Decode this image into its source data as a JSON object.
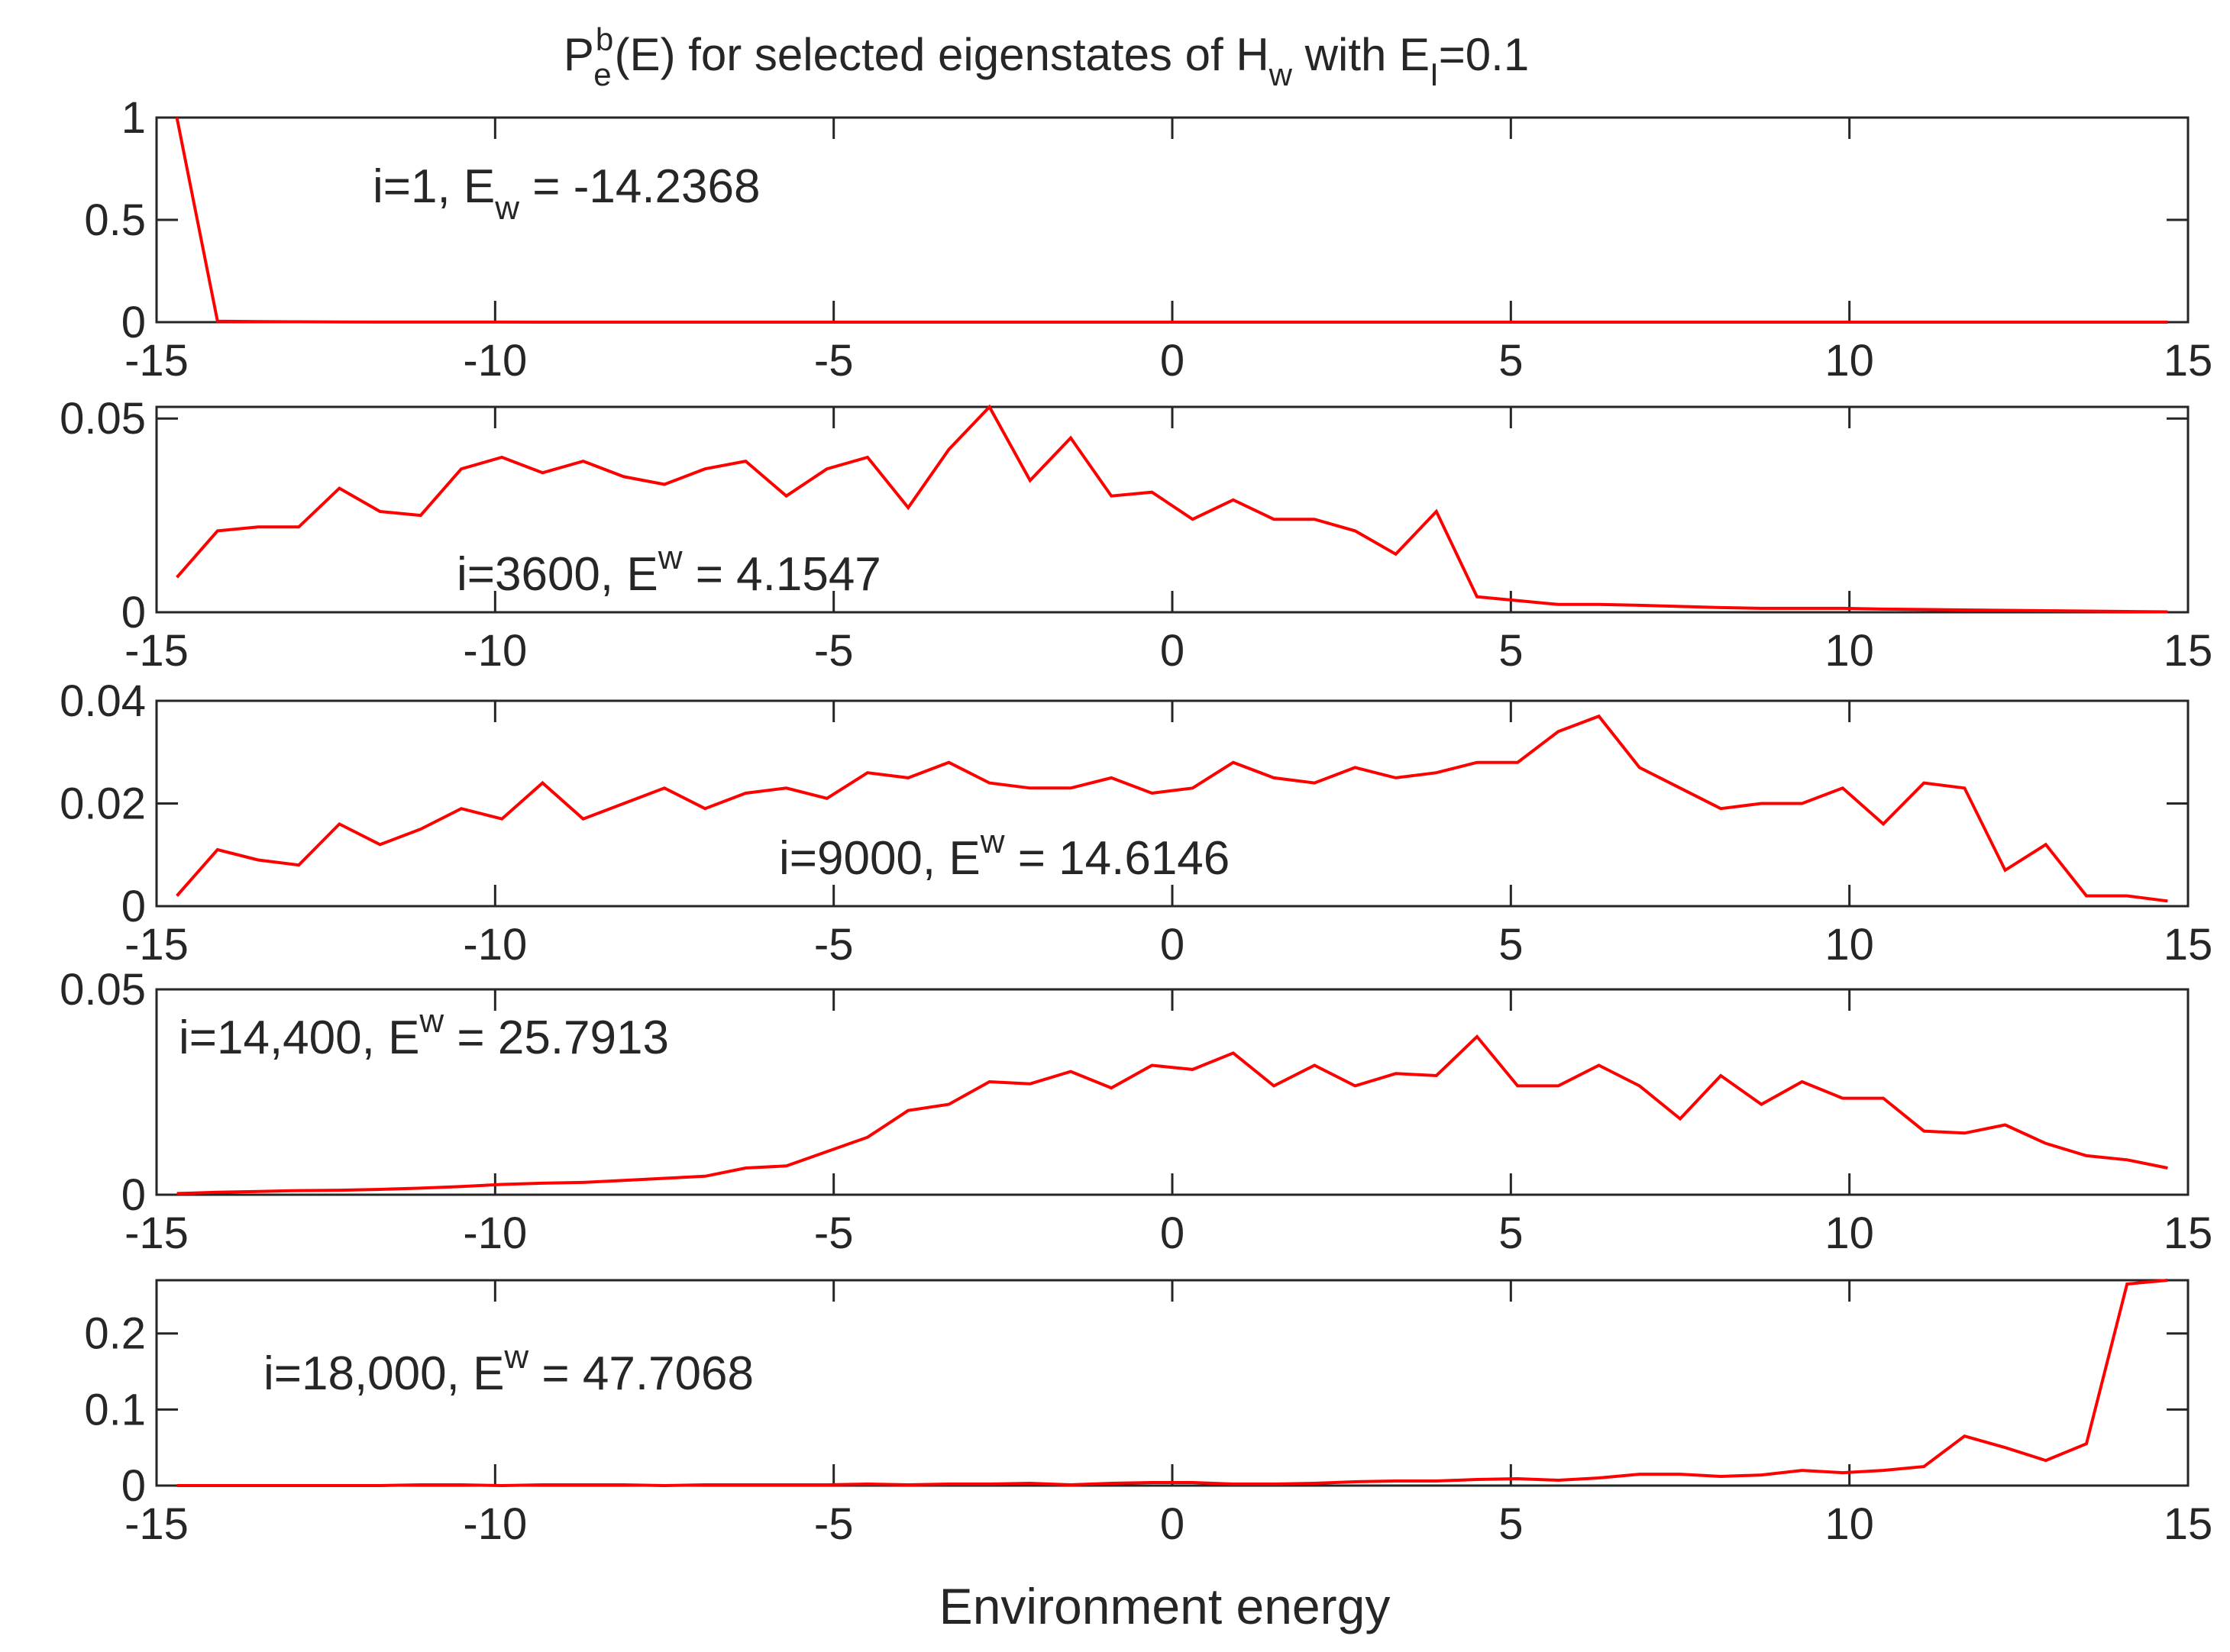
{
  "title": {
    "base": "P",
    "sup": "b",
    "sub": "e",
    "rest": "(E) for selected eigenstates of H",
    "h_sub": "w",
    "rest2": " with E",
    "e_sub": "I",
    "rest3": "=0.1"
  },
  "xlabel": "Environment energy",
  "colors": {
    "series": "#ff0000",
    "axis": "#262626",
    "background": "#ffffff"
  },
  "chart_data": [
    {
      "type": "line",
      "annotation": {
        "prefix": "i=1, E",
        "script": "w",
        "script_pos": "sub",
        "suffix": " = -14.2368"
      },
      "xlim": [
        -15,
        15
      ],
      "ylim": [
        0,
        1
      ],
      "xticks": [
        "-15",
        "-10",
        "-5",
        "0",
        "5",
        "10",
        "15"
      ],
      "yticks": [
        {
          "v": 0,
          "label": "0"
        },
        {
          "v": 0.5,
          "label": "0.5"
        },
        {
          "v": 1,
          "label": "1"
        }
      ],
      "x": [
        -14.7,
        -14.1,
        -12.9,
        -12.3,
        -15
      ],
      "values": [
        1.0,
        0.005,
        0.002,
        0.0,
        0.0
      ],
      "series": [
        {
          "name": "Pe",
          "x": [
            -14.7,
            -14.1,
            -13.5,
            -12.9,
            -12.3,
            -11.7,
            -11.1,
            -10.5,
            -9.9,
            -9.3,
            -8.7,
            -8.1,
            -7.5,
            -6.9,
            -6.3,
            -5.7,
            -5.1,
            -4.5,
            -3.9,
            -3.3,
            -2.7,
            -2.1,
            -1.5,
            -0.9,
            -0.3,
            0.3,
            0.9,
            1.5,
            2.1,
            2.7,
            3.3,
            3.9,
            4.5,
            5.1,
            5.7,
            6.3,
            6.9,
            7.5,
            8.1,
            8.7,
            9.3,
            9.9,
            10.5,
            11.1,
            11.7,
            12.3,
            12.9,
            13.5,
            14.1,
            14.7
          ],
          "values": [
            1.0,
            0.005,
            0.003,
            0.002,
            0.0006,
            0.0004,
            0.0003,
            0.0002,
            0.0002,
            0.0001,
            0.0001,
            0.0001,
            0.0001,
            0.0001,
            0.0001,
            0.0001,
            0.0001,
            0.0001,
            0.0001,
            0.0001,
            0.0001,
            0.0001,
            0.0001,
            0.0001,
            0.0001,
            0.0001,
            0.0001,
            0.0001,
            0.0001,
            0.0001,
            0.0001,
            0.0001,
            0.0001,
            0.0001,
            0.0001,
            0.0001,
            0.0001,
            0.0001,
            0.0001,
            0.0001,
            0.0001,
            0.0001,
            0.0001,
            0.0001,
            0.0001,
            0.0001,
            0.0001,
            0.0001,
            0.0001,
            0.0001
          ]
        }
      ]
    },
    {
      "type": "line",
      "annotation": {
        "prefix": "i=3600, E",
        "script": "w",
        "script_pos": "sup",
        "suffix": " = 4.1547"
      },
      "xlim": [
        -15,
        15
      ],
      "ylim": [
        0,
        0.053
      ],
      "xticks": [
        "-15",
        "-10",
        "-5",
        "0",
        "5",
        "10",
        "15"
      ],
      "yticks": [
        {
          "v": 0,
          "label": "0"
        },
        {
          "v": 0.05,
          "label": "0.05"
        }
      ],
      "series": [
        {
          "name": "Pe",
          "x": [
            -14.7,
            -14.1,
            -13.5,
            -12.9,
            -12.3,
            -11.7,
            -11.1,
            -10.5,
            -9.9,
            -9.3,
            -8.7,
            -8.1,
            -7.5,
            -6.9,
            -6.3,
            -5.7,
            -5.1,
            -4.5,
            -3.9,
            -3.3,
            -2.7,
            -2.1,
            -1.5,
            -0.9,
            -0.3,
            0.3,
            0.9,
            1.5,
            2.1,
            2.7,
            3.3,
            3.9,
            4.5,
            5.1,
            5.7,
            6.3,
            6.9,
            7.5,
            8.1,
            8.7,
            9.3,
            9.9,
            10.5,
            11.1,
            11.7,
            12.3,
            12.9,
            13.5,
            14.1,
            14.7
          ],
          "values": [
            0.009,
            0.021,
            0.022,
            0.022,
            0.032,
            0.026,
            0.025,
            0.037,
            0.04,
            0.036,
            0.039,
            0.035,
            0.033,
            0.037,
            0.039,
            0.03,
            0.037,
            0.04,
            0.027,
            0.042,
            0.053,
            0.034,
            0.045,
            0.03,
            0.031,
            0.024,
            0.029,
            0.024,
            0.024,
            0.021,
            0.015,
            0.026,
            0.004,
            0.003,
            0.002,
            0.002,
            0.0018,
            0.0015,
            0.0012,
            0.001,
            0.001,
            0.001,
            0.0008,
            0.0007,
            0.0006,
            0.0005,
            0.0004,
            0.0003,
            0.0002,
            0.0001
          ]
        }
      ]
    },
    {
      "type": "line",
      "annotation": {
        "prefix": "i=9000, E",
        "script": "w",
        "script_pos": "sup",
        "suffix": " = 14.6146"
      },
      "xlim": [
        -15,
        15
      ],
      "ylim": [
        0,
        0.04
      ],
      "xticks": [
        "-15",
        "-10",
        "-5",
        "0",
        "5",
        "10",
        "15"
      ],
      "yticks": [
        {
          "v": 0,
          "label": "0"
        },
        {
          "v": 0.02,
          "label": "0.02"
        },
        {
          "v": 0.04,
          "label": "0.04"
        }
      ],
      "series": [
        {
          "name": "Pe",
          "x": [
            -14.7,
            -14.1,
            -13.5,
            -12.9,
            -12.3,
            -11.7,
            -11.1,
            -10.5,
            -9.9,
            -9.3,
            -8.7,
            -8.1,
            -7.5,
            -6.9,
            -6.3,
            -5.7,
            -5.1,
            -4.5,
            -3.9,
            -3.3,
            -2.7,
            -2.1,
            -1.5,
            -0.9,
            -0.3,
            0.3,
            0.9,
            1.5,
            2.1,
            2.7,
            3.3,
            3.9,
            4.5,
            5.1,
            5.7,
            6.3,
            6.9,
            7.5,
            8.1,
            8.7,
            9.3,
            9.9,
            10.5,
            11.1,
            11.7,
            12.3,
            12.9,
            13.5,
            14.1,
            14.7
          ],
          "values": [
            0.002,
            0.011,
            0.009,
            0.008,
            0.016,
            0.012,
            0.015,
            0.019,
            0.017,
            0.024,
            0.017,
            0.02,
            0.023,
            0.019,
            0.022,
            0.023,
            0.021,
            0.026,
            0.025,
            0.028,
            0.024,
            0.023,
            0.023,
            0.025,
            0.022,
            0.023,
            0.028,
            0.025,
            0.024,
            0.027,
            0.025,
            0.026,
            0.028,
            0.028,
            0.034,
            0.037,
            0.027,
            0.023,
            0.019,
            0.02,
            0.02,
            0.023,
            0.016,
            0.024,
            0.023,
            0.007,
            0.012,
            0.002,
            0.002,
            0.001
          ]
        }
      ]
    },
    {
      "type": "line",
      "annotation": {
        "prefix": "i=14,400, E",
        "script": "w",
        "script_pos": "sup",
        "suffix": " = 25.7913"
      },
      "xlim": [
        -15,
        15
      ],
      "ylim": [
        0,
        0.05
      ],
      "xticks": [
        "-15",
        "-10",
        "-5",
        "0",
        "5",
        "10",
        "15"
      ],
      "yticks": [
        {
          "v": 0,
          "label": "0"
        },
        {
          "v": 0.05,
          "label": "0.05"
        }
      ],
      "series": [
        {
          "name": "Pe",
          "x": [
            -14.7,
            -14.1,
            -13.5,
            -12.9,
            -12.3,
            -11.7,
            -11.1,
            -10.5,
            -9.9,
            -9.3,
            -8.7,
            -8.1,
            -7.5,
            -6.9,
            -6.3,
            -5.7,
            -5.1,
            -4.5,
            -3.9,
            -3.3,
            -2.7,
            -2.1,
            -1.5,
            -0.9,
            -0.3,
            0.3,
            0.9,
            1.5,
            2.1,
            2.7,
            3.3,
            3.9,
            4.5,
            5.1,
            5.7,
            6.3,
            6.9,
            7.5,
            8.1,
            8.7,
            9.3,
            9.9,
            10.5,
            11.1,
            11.7,
            12.3,
            12.9,
            13.5,
            14.1,
            14.7
          ],
          "values": [
            0.0003,
            0.0006,
            0.0008,
            0.001,
            0.0011,
            0.0013,
            0.0016,
            0.002,
            0.0025,
            0.0028,
            0.003,
            0.0035,
            0.004,
            0.0045,
            0.0065,
            0.007,
            0.0105,
            0.014,
            0.0205,
            0.022,
            0.0275,
            0.027,
            0.03,
            0.026,
            0.0315,
            0.0305,
            0.0345,
            0.0265,
            0.0315,
            0.0265,
            0.0295,
            0.029,
            0.0385,
            0.0265,
            0.0265,
            0.0315,
            0.0265,
            0.0185,
            0.029,
            0.022,
            0.0275,
            0.0235,
            0.0235,
            0.0155,
            0.015,
            0.017,
            0.0125,
            0.0095,
            0.0085,
            0.0065
          ]
        }
      ]
    },
    {
      "type": "line",
      "annotation": {
        "prefix": "i=18,000, E",
        "script": "w",
        "script_pos": "sup",
        "suffix": " = 47.7068"
      },
      "xlim": [
        -15,
        15
      ],
      "ylim": [
        0,
        0.27
      ],
      "xticks": [
        "-15",
        "-10",
        "-5",
        "0",
        "5",
        "10",
        "15"
      ],
      "yticks": [
        {
          "v": 0,
          "label": "0"
        },
        {
          "v": 0.1,
          "label": "0.1"
        },
        {
          "v": 0.2,
          "label": "0.2"
        }
      ],
      "series": [
        {
          "name": "Pe",
          "x": [
            -14.7,
            -14.1,
            -13.5,
            -12.9,
            -12.3,
            -11.7,
            -11.1,
            -10.5,
            -9.9,
            -9.3,
            -8.7,
            -8.1,
            -7.5,
            -6.9,
            -6.3,
            -5.7,
            -5.1,
            -4.5,
            -3.9,
            -3.3,
            -2.7,
            -2.1,
            -1.5,
            -0.9,
            -0.3,
            0.3,
            0.9,
            1.5,
            2.1,
            2.7,
            3.3,
            3.9,
            4.5,
            5.1,
            5.7,
            6.3,
            6.9,
            7.5,
            8.1,
            8.7,
            9.3,
            9.9,
            10.5,
            11.1,
            11.7,
            12.3,
            12.9,
            13.5,
            14.1,
            14.7
          ],
          "values": [
            0.0,
            0.0,
            0.0,
            0.0,
            0.0,
            0.0,
            0.001,
            0.001,
            0.0,
            0.001,
            0.001,
            0.001,
            0.0,
            0.001,
            0.001,
            0.001,
            0.001,
            0.002,
            0.001,
            0.002,
            0.002,
            0.003,
            0.001,
            0.003,
            0.004,
            0.004,
            0.002,
            0.002,
            0.003,
            0.005,
            0.006,
            0.006,
            0.008,
            0.009,
            0.007,
            0.01,
            0.015,
            0.015,
            0.012,
            0.014,
            0.02,
            0.017,
            0.02,
            0.025,
            0.065,
            0.05,
            0.033,
            0.055,
            0.265,
            0.27
          ]
        }
      ]
    }
  ]
}
